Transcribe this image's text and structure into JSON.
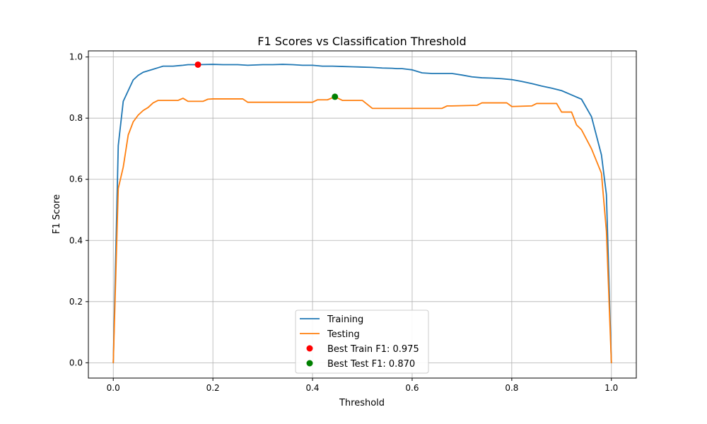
{
  "chart_data": {
    "type": "line",
    "title": "F1 Scores vs Classification Threshold",
    "xlabel": "Threshold",
    "ylabel": "F1 Score",
    "xlim": [
      -0.05,
      1.05
    ],
    "ylim": [
      -0.05,
      1.02
    ],
    "xticks": [
      0.0,
      0.2,
      0.4,
      0.6,
      0.8,
      1.0
    ],
    "xtick_labels": [
      "0.0",
      "0.2",
      "0.4",
      "0.6",
      "0.8",
      "1.0"
    ],
    "yticks": [
      0.0,
      0.2,
      0.4,
      0.6,
      0.8,
      1.0
    ],
    "ytick_labels": [
      "0.0",
      "0.2",
      "0.4",
      "0.6",
      "0.8",
      "1.0"
    ],
    "grid": true,
    "legend_position": "lower-center",
    "series": [
      {
        "name": "Training",
        "color": "#1f77b4",
        "x": [
          0.0,
          0.01,
          0.02,
          0.03,
          0.04,
          0.05,
          0.06,
          0.07,
          0.08,
          0.09,
          0.1,
          0.12,
          0.14,
          0.15,
          0.17,
          0.2,
          0.22,
          0.25,
          0.27,
          0.3,
          0.32,
          0.34,
          0.36,
          0.38,
          0.4,
          0.42,
          0.44,
          0.46,
          0.48,
          0.5,
          0.52,
          0.54,
          0.56,
          0.57,
          0.58,
          0.59,
          0.6,
          0.62,
          0.64,
          0.66,
          0.68,
          0.7,
          0.72,
          0.74,
          0.76,
          0.78,
          0.8,
          0.82,
          0.84,
          0.86,
          0.88,
          0.9,
          0.92,
          0.94,
          0.96,
          0.98,
          0.99,
          1.0
        ],
        "values": [
          0.0,
          0.71,
          0.855,
          0.89,
          0.925,
          0.94,
          0.95,
          0.955,
          0.96,
          0.965,
          0.97,
          0.97,
          0.973,
          0.975,
          0.975,
          0.976,
          0.975,
          0.975,
          0.973,
          0.975,
          0.975,
          0.976,
          0.975,
          0.973,
          0.973,
          0.97,
          0.97,
          0.969,
          0.968,
          0.967,
          0.966,
          0.964,
          0.963,
          0.962,
          0.962,
          0.96,
          0.958,
          0.948,
          0.946,
          0.946,
          0.946,
          0.941,
          0.935,
          0.932,
          0.931,
          0.929,
          0.926,
          0.92,
          0.913,
          0.905,
          0.898,
          0.89,
          0.876,
          0.862,
          0.805,
          0.68,
          0.55,
          0.0
        ]
      },
      {
        "name": "Testing",
        "color": "#ff7f0e",
        "x": [
          0.0,
          0.01,
          0.02,
          0.03,
          0.04,
          0.05,
          0.06,
          0.07,
          0.08,
          0.09,
          0.1,
          0.13,
          0.14,
          0.15,
          0.18,
          0.19,
          0.2,
          0.26,
          0.27,
          0.3,
          0.35,
          0.4,
          0.41,
          0.43,
          0.445,
          0.46,
          0.5,
          0.52,
          0.66,
          0.67,
          0.68,
          0.73,
          0.74,
          0.79,
          0.8,
          0.84,
          0.85,
          0.89,
          0.9,
          0.92,
          0.93,
          0.94,
          0.96,
          0.98,
          0.99,
          1.0
        ],
        "values": [
          0.0,
          0.57,
          0.64,
          0.745,
          0.788,
          0.81,
          0.825,
          0.835,
          0.85,
          0.858,
          0.858,
          0.858,
          0.865,
          0.855,
          0.855,
          0.862,
          0.863,
          0.863,
          0.852,
          0.852,
          0.852,
          0.852,
          0.86,
          0.86,
          0.87,
          0.858,
          0.858,
          0.832,
          0.832,
          0.84,
          0.84,
          0.842,
          0.85,
          0.85,
          0.838,
          0.84,
          0.848,
          0.848,
          0.82,
          0.82,
          0.778,
          0.762,
          0.7,
          0.62,
          0.43,
          0.0
        ]
      }
    ],
    "markers": [
      {
        "name": "Best Train F1: 0.975",
        "color": "#ff0000",
        "x": 0.17,
        "y": 0.975
      },
      {
        "name": "Best Test F1: 0.870",
        "color": "#008000",
        "x": 0.445,
        "y": 0.87
      }
    ]
  }
}
